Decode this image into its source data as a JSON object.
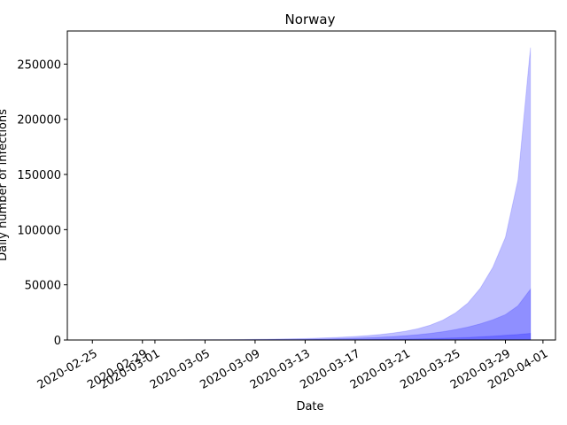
{
  "chart_data": {
    "type": "area",
    "title": "Norway",
    "xlabel": "Date",
    "ylabel": "Daily number of infections",
    "x_ticks": [
      "2020-02-25",
      "2020-02-29",
      "2020-03-01",
      "2020-03-05",
      "2020-03-09",
      "2020-03-13",
      "2020-03-17",
      "2020-03-21",
      "2020-03-25",
      "2020-03-29",
      "2020-04-01"
    ],
    "y_ticks": [
      "0",
      "50000",
      "100000",
      "150000",
      "200000",
      "250000"
    ],
    "ylim": [
      0,
      280000
    ],
    "xlim": [
      "2020-02-23",
      "2020-04-02"
    ],
    "grid": false,
    "fill_color": "#0000ff",
    "x": [
      "2020-02-26",
      "2020-02-27",
      "2020-02-28",
      "2020-02-29",
      "2020-03-01",
      "2020-03-02",
      "2020-03-03",
      "2020-03-04",
      "2020-03-05",
      "2020-03-06",
      "2020-03-07",
      "2020-03-08",
      "2020-03-09",
      "2020-03-10",
      "2020-03-11",
      "2020-03-12",
      "2020-03-13",
      "2020-03-14",
      "2020-03-15",
      "2020-03-16",
      "2020-03-17",
      "2020-03-18",
      "2020-03-19",
      "2020-03-20",
      "2020-03-21",
      "2020-03-22",
      "2020-03-23",
      "2020-03-24",
      "2020-03-25",
      "2020-03-26",
      "2020-03-27",
      "2020-03-28",
      "2020-03-29",
      "2020-03-30",
      "2020-03-31"
    ],
    "bands": [
      {
        "lower": [
          0,
          0,
          0,
          0,
          0,
          0,
          0,
          0,
          0,
          0,
          0,
          0,
          0,
          0,
          0,
          0,
          0,
          0,
          0,
          0,
          0,
          0,
          0,
          0,
          0,
          0,
          0,
          0,
          0,
          0,
          0,
          0,
          0,
          0,
          0
        ],
        "upper": [
          10,
          20,
          30,
          50,
          70,
          100,
          130,
          170,
          220,
          280,
          350,
          440,
          550,
          690,
          860,
          1080,
          1350,
          1700,
          2100,
          2600,
          3200,
          4000,
          5000,
          6300,
          7900,
          10200,
          13500,
          18000,
          24500,
          33500,
          47000,
          66000,
          93000,
          145000,
          265000
        ]
      },
      {
        "lower": [
          0,
          0,
          0,
          0,
          0,
          0,
          0,
          0,
          0,
          0,
          0,
          0,
          0,
          0,
          0,
          0,
          0,
          0,
          0,
          0,
          0,
          0,
          0,
          0,
          0,
          0,
          0,
          0,
          0,
          0,
          0,
          0,
          0,
          0,
          0
        ],
        "upper": [
          5,
          8,
          12,
          18,
          25,
          35,
          48,
          65,
          85,
          110,
          145,
          185,
          240,
          310,
          400,
          510,
          650,
          820,
          1030,
          1300,
          1620,
          2020,
          2520,
          3130,
          3900,
          4850,
          6050,
          7550,
          9400,
          11750,
          14700,
          18400,
          23000,
          31000,
          46000
        ]
      },
      {
        "lower": [
          0,
          0,
          0,
          0,
          0,
          0,
          0,
          0,
          0,
          0,
          0,
          0,
          0,
          0,
          0,
          0,
          0,
          0,
          0,
          0,
          0,
          0,
          0,
          0,
          0,
          0,
          0,
          0,
          0,
          0,
          0,
          0,
          0,
          0,
          0
        ],
        "upper": [
          2,
          3,
          4,
          6,
          8,
          11,
          15,
          20,
          26,
          33,
          42,
          53,
          66,
          82,
          102,
          127,
          158,
          195,
          242,
          300,
          370,
          455,
          560,
          690,
          850,
          1040,
          1280,
          1570,
          1920,
          2350,
          2870,
          3500,
          4280,
          5000,
          6000
        ]
      }
    ]
  }
}
